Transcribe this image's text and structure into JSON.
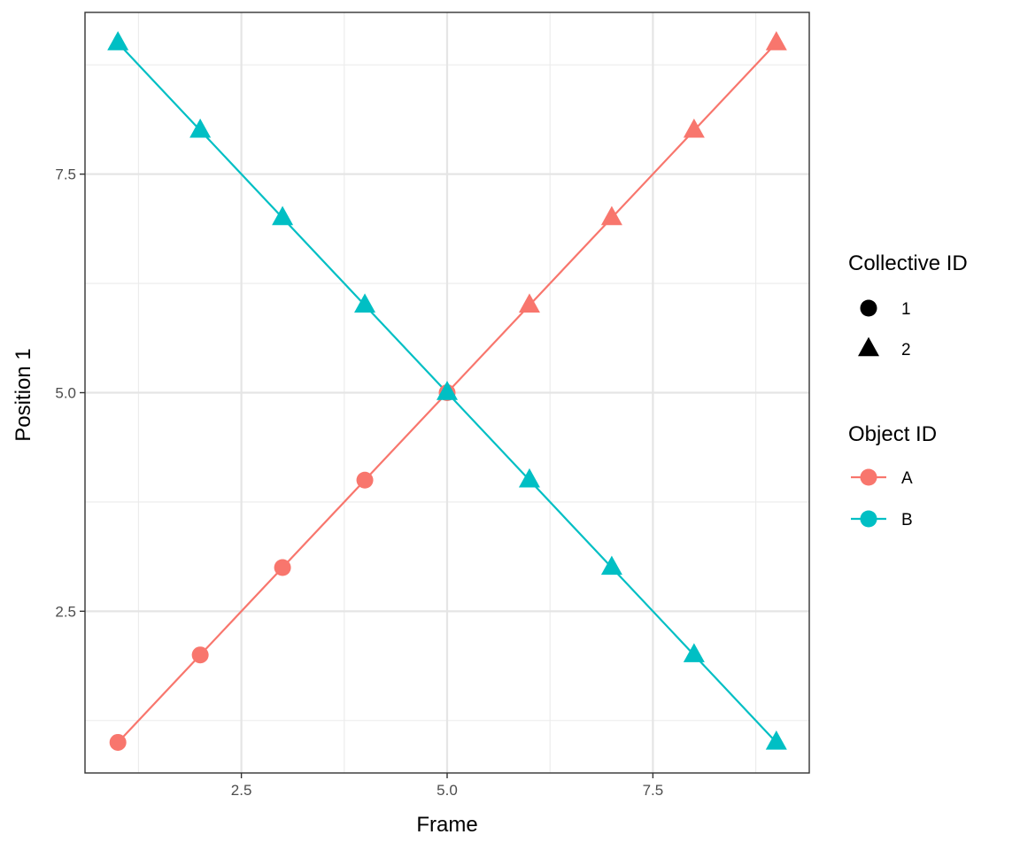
{
  "chart_data": {
    "type": "line",
    "title": "",
    "xlabel": "Frame",
    "ylabel": "Position 1",
    "xlim": [
      0.6,
      9.4
    ],
    "ylim": [
      0.65,
      9.35
    ],
    "grid": true,
    "x_ticks": [
      2.5,
      5.0,
      7.5
    ],
    "x_tick_labels": [
      "2.5",
      "5.0",
      "7.5"
    ],
    "y_ticks": [
      2.5,
      5.0,
      7.5
    ],
    "y_tick_labels": [
      "2.5",
      "5.0",
      "7.5"
    ],
    "series": [
      {
        "name": "A",
        "color": "#F8766D",
        "points": [
          {
            "x": 1,
            "y": 1,
            "collective": "1"
          },
          {
            "x": 2,
            "y": 2,
            "collective": "1"
          },
          {
            "x": 3,
            "y": 3,
            "collective": "1"
          },
          {
            "x": 4,
            "y": 4,
            "collective": "1"
          },
          {
            "x": 5,
            "y": 5,
            "collective": "1"
          },
          {
            "x": 6,
            "y": 6,
            "collective": "2"
          },
          {
            "x": 7,
            "y": 7,
            "collective": "2"
          },
          {
            "x": 8,
            "y": 8,
            "collective": "2"
          },
          {
            "x": 9,
            "y": 9,
            "collective": "2"
          }
        ]
      },
      {
        "name": "B",
        "color": "#00BFC4",
        "points": [
          {
            "x": 1,
            "y": 9,
            "collective": "2"
          },
          {
            "x": 2,
            "y": 8,
            "collective": "2"
          },
          {
            "x": 3,
            "y": 7,
            "collective": "2"
          },
          {
            "x": 4,
            "y": 6,
            "collective": "2"
          },
          {
            "x": 5,
            "y": 5,
            "collective": "2"
          },
          {
            "x": 6,
            "y": 4,
            "collective": "2"
          },
          {
            "x": 7,
            "y": 3,
            "collective": "2"
          },
          {
            "x": 8,
            "y": 2,
            "collective": "2"
          },
          {
            "x": 9,
            "y": 1,
            "collective": "2"
          }
        ]
      }
    ],
    "legends": [
      {
        "title": "Collective ID",
        "entries": [
          {
            "label": "1",
            "shape": "circle"
          },
          {
            "label": "2",
            "shape": "triangle"
          }
        ]
      },
      {
        "title": "Object ID",
        "entries": [
          {
            "label": "A",
            "color": "#F8766D"
          },
          {
            "label": "B",
            "color": "#00BFC4"
          }
        ]
      }
    ],
    "legend_position": "right"
  }
}
